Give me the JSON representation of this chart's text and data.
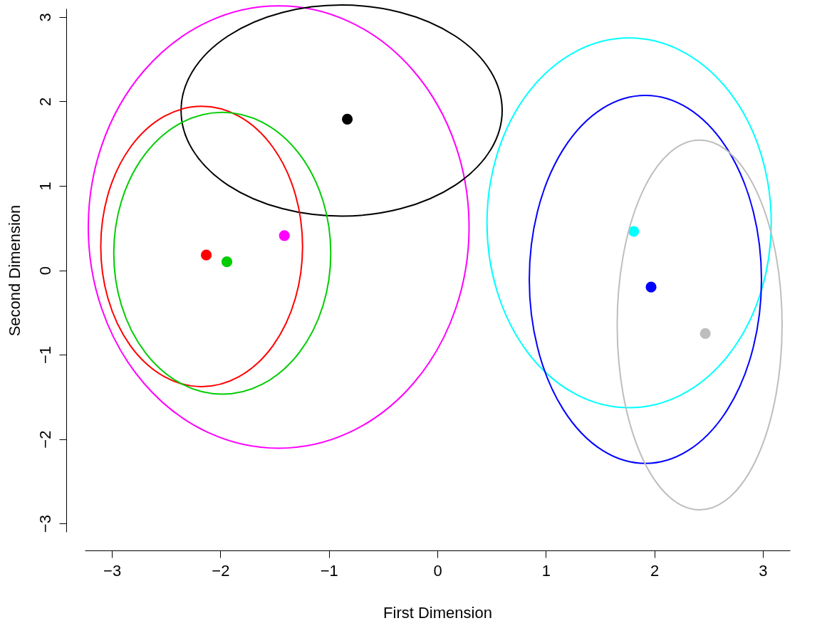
{
  "chart_data": {
    "type": "scatter",
    "xlabel": "First Dimension",
    "ylabel": "Second Dimension",
    "xlim": [
      -3.25,
      3.25
    ],
    "ylim": [
      -3.1,
      3.1
    ],
    "xticks": [
      -3,
      -2,
      -1,
      0,
      1,
      2,
      3
    ],
    "yticks": [
      -3,
      -2,
      -1,
      0,
      1,
      2,
      3
    ],
    "grid": false,
    "legend": false,
    "series": [
      {
        "type": "scatter",
        "marker": "circle",
        "x": [
          -2.13,
          -1.94,
          -1.41,
          -0.83,
          1.81,
          1.97,
          2.47
        ],
        "values": [
          0.18,
          0.1,
          0.41,
          1.79,
          0.46,
          -0.2,
          -0.75
        ],
        "colors": [
          "#ff0000",
          "#00cd00",
          "#ff00ff",
          "#000000",
          "#00ffff",
          "#0000ff",
          "#bebebe"
        ]
      }
    ]
  }
}
